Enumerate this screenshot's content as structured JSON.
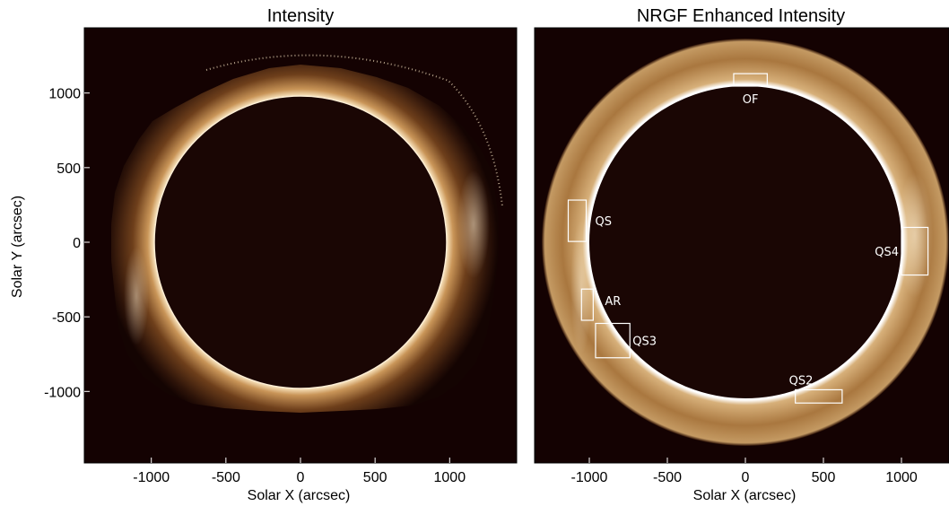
{
  "chart_data": [
    {
      "type": "heatmap",
      "title": "Intensity",
      "xlabel": "Solar X (arcsec)",
      "ylabel": "Solar Y (arcsec)",
      "xlim": [
        -1390,
        1330
      ],
      "ylim": [
        -1400,
        1330
      ],
      "xticks": [
        -1000,
        -500,
        0,
        500,
        1000
      ],
      "yticks": [
        -1000,
        -500,
        0,
        500,
        1000
      ],
      "disk_radius": 1000,
      "colormap": [
        "#140202",
        "#b98a55",
        "#fffaf0"
      ],
      "grid": false
    },
    {
      "type": "heatmap",
      "title": "NRGF Enhanced Intensity",
      "xlabel": "Solar X (arcsec)",
      "ylabel": "",
      "xlim": [
        -1390,
        1330
      ],
      "ylim": [
        -1400,
        1330
      ],
      "xticks": [
        -1000,
        -500,
        0,
        500,
        1000
      ],
      "disk_radius": 1000,
      "colormap": [
        "#140202",
        "#b98a55",
        "#fffaf0"
      ],
      "grid": false,
      "regions": [
        {
          "label": "OF",
          "x0": -75,
          "x1": 140,
          "y0": 1000,
          "y1": 1080
        },
        {
          "label": "QS",
          "x0": -1135,
          "x1": -1020,
          "y0": 5,
          "y1": 270
        },
        {
          "label": "QS4",
          "x0": 1000,
          "x1": 1170,
          "y0": -210,
          "y1": 95
        },
        {
          "label": "AR",
          "x0": -1050,
          "x1": -975,
          "y0": -500,
          "y1": -300
        },
        {
          "label": "QS3",
          "x0": -960,
          "x1": -740,
          "y0": -740,
          "y1": -520
        },
        {
          "label": "QS2",
          "x0": 320,
          "x1": 620,
          "y0": -1030,
          "y1": -945
        }
      ]
    }
  ]
}
